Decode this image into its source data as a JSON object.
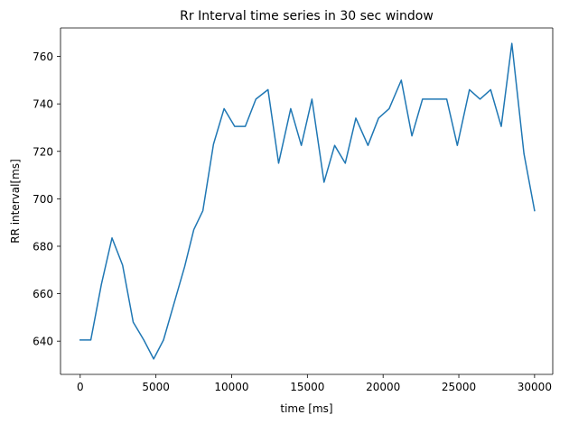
{
  "chart_data": {
    "type": "line",
    "title": "Rr Interval time series in 30 sec window",
    "xlabel": "time [ms]",
    "ylabel": "RR interval[ms]",
    "xlim": [
      -1300,
      31200
    ],
    "ylim": [
      626,
      772
    ],
    "x_ticks": [
      0,
      5000,
      10000,
      15000,
      20000,
      25000,
      30000
    ],
    "y_ticks": [
      640,
      660,
      680,
      700,
      720,
      740,
      760
    ],
    "grid": false,
    "line_color": "#1f77b4",
    "series": [
      {
        "x": [
          0,
          700,
          1400,
          2100,
          2800,
          3500,
          4200,
          4850,
          5500,
          6200,
          6900,
          7500,
          8100,
          8800,
          9500,
          10200,
          10900,
          11600,
          12400,
          13100,
          13900,
          14600,
          15300,
          16100,
          16800,
          17500,
          18200,
          19000,
          19700,
          20400,
          21200,
          21900,
          22600,
          23400,
          24200,
          24900,
          25700,
          26400,
          27100,
          27800,
          28500,
          29300,
          30000
        ],
        "y": [
          640.5,
          640.5,
          664,
          683.5,
          672,
          648,
          640.5,
          632.5,
          640.5,
          656,
          671.5,
          687,
          695,
          723,
          738,
          730.5,
          730.5,
          742,
          746,
          715,
          738,
          722.5,
          742,
          707,
          722.5,
          715,
          734,
          722.5,
          734,
          738,
          750,
          726.5,
          742,
          742,
          742,
          722.5,
          746,
          742,
          746,
          730.5,
          765.5,
          719,
          695
        ]
      }
    ]
  }
}
